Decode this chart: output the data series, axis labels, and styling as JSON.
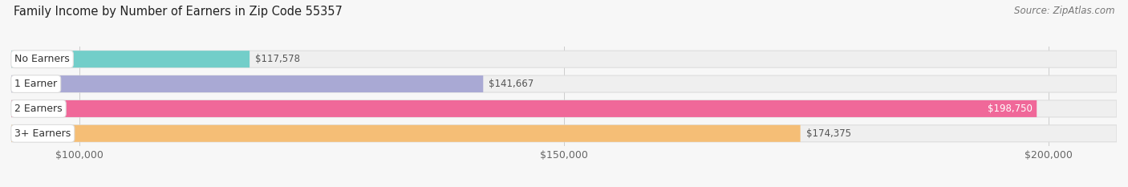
{
  "title": "Family Income by Number of Earners in Zip Code 55357",
  "source_text": "Source: ZipAtlas.com",
  "categories": [
    "No Earners",
    "1 Earner",
    "2 Earners",
    "3+ Earners"
  ],
  "values": [
    117578,
    141667,
    198750,
    174375
  ],
  "bar_colors": [
    "#72CEC9",
    "#A9A9D4",
    "#F06899",
    "#F5BE76"
  ],
  "bar_bg_color": "#EFEFEF",
  "value_labels": [
    "$117,578",
    "$141,667",
    "$198,750",
    "$174,375"
  ],
  "value_inside": [
    false,
    false,
    true,
    false
  ],
  "x_tick_labels": [
    "$100,000",
    "$150,000",
    "$200,000"
  ],
  "x_tick_values": [
    100000,
    150000,
    200000
  ],
  "xlim_min": 93000,
  "xlim_max": 207000,
  "background_color": "#F7F7F7",
  "title_fontsize": 10.5,
  "source_fontsize": 8.5,
  "label_fontsize": 9,
  "value_fontsize": 8.5,
  "tick_fontsize": 9
}
